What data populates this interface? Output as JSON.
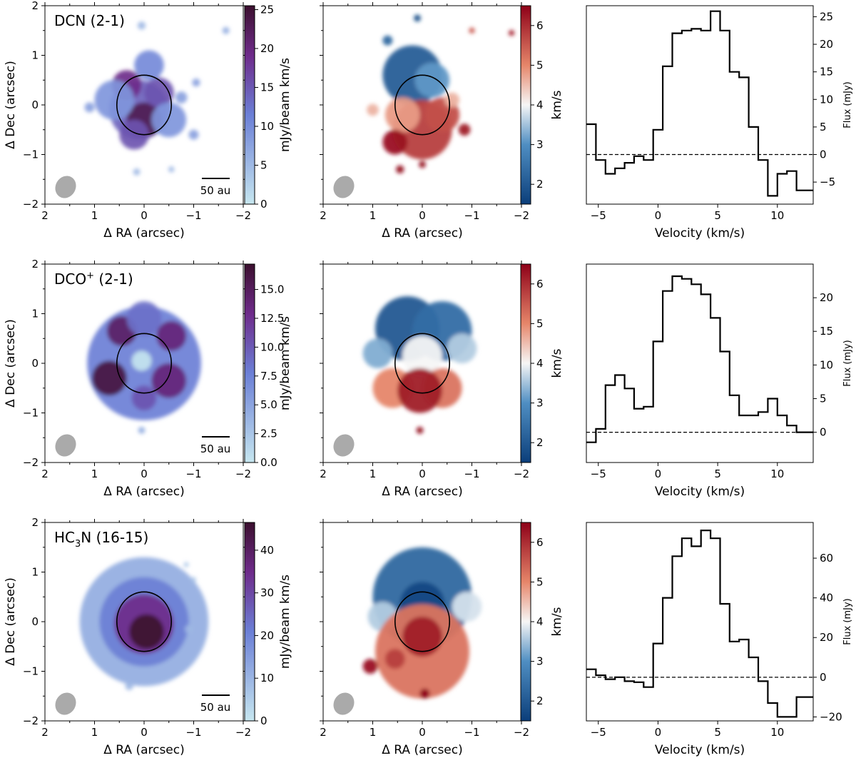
{
  "figure": {
    "colors": {
      "intensity_low": "#c6e6ef",
      "intensity_mid": "#6b7fd6",
      "intensity_high": "#3b0f2e",
      "velocity_blue": "#0b3e7a",
      "velocity_white": "#f6f6f6",
      "velocity_red": "#8e0018",
      "beam": "#aaaaaa"
    }
  },
  "chart_data": [
    {
      "type": "heatmap",
      "kind": "intensity",
      "row": 0,
      "title": "DCN (2-1)",
      "xlabel": "Δ RA (arcsec)",
      "ylabel": "Δ Dec (arcsec)",
      "xlim": [
        2,
        -2
      ],
      "ylim": [
        -2,
        2
      ],
      "xticks": [
        2,
        1,
        0,
        -1,
        -2
      ],
      "yticks": [
        -2,
        -1,
        0,
        1,
        2
      ],
      "xtick_labels": [
        "2",
        "1",
        "0",
        "−1",
        "−2"
      ],
      "ytick_labels": [
        "−2",
        "−1",
        "0",
        "1",
        "2"
      ],
      "colorbar": {
        "label": "mJy/beam km/s",
        "range": [
          0,
          25.5
        ],
        "ticks": [
          0,
          5,
          10,
          15,
          20,
          25
        ],
        "tick_labels": [
          "0",
          "5",
          "10",
          "15",
          "20",
          "25"
        ]
      },
      "scalebar": "50 au",
      "ellipse": {
        "center": [
          0,
          0
        ],
        "semi_x": 0.55,
        "semi_y": 0.6
      },
      "blobs": [
        {
          "x": 0.1,
          "y": -0.1,
          "r": 0.6,
          "v": 0.55
        },
        {
          "x": 0.0,
          "y": -0.3,
          "r": 0.35,
          "v": 0.9
        },
        {
          "x": 0.35,
          "y": 0.4,
          "r": 0.3,
          "v": 0.75
        },
        {
          "x": -0.3,
          "y": 0.25,
          "r": 0.3,
          "v": 0.6
        },
        {
          "x": -0.1,
          "y": 0.8,
          "r": 0.3,
          "v": 0.4
        },
        {
          "x": 0.6,
          "y": 0.1,
          "r": 0.4,
          "v": 0.35
        },
        {
          "x": -0.5,
          "y": -0.3,
          "r": 0.35,
          "v": 0.35
        },
        {
          "x": 0.2,
          "y": -0.6,
          "r": 0.3,
          "v": 0.6
        },
        {
          "x": 1.1,
          "y": -0.05,
          "r": 0.1,
          "v": 0.3
        },
        {
          "x": -0.75,
          "y": 0.15,
          "r": 0.12,
          "v": 0.3
        },
        {
          "x": -1.0,
          "y": -0.6,
          "r": 0.1,
          "v": 0.3
        },
        {
          "x": -1.65,
          "y": 1.5,
          "r": 0.07,
          "v": 0.25
        },
        {
          "x": 0.05,
          "y": 1.6,
          "r": 0.08,
          "v": 0.2
        },
        {
          "x": -1.05,
          "y": 0.45,
          "r": 0.08,
          "v": 0.3
        },
        {
          "x": 0.15,
          "y": -1.35,
          "r": 0.07,
          "v": 0.2
        },
        {
          "x": -0.55,
          "y": -1.3,
          "r": 0.06,
          "v": 0.2
        }
      ]
    },
    {
      "type": "heatmap",
      "kind": "velocity",
      "row": 0,
      "xlabel": "Δ RA (arcsec)",
      "xlim": [
        2,
        -2
      ],
      "ylim": [
        -2,
        2
      ],
      "xticks": [
        2,
        1,
        0,
        -1,
        -2
      ],
      "yticks": [
        -2,
        -1,
        0,
        1,
        2
      ],
      "xtick_labels": [
        "2",
        "1",
        "0",
        "−1",
        "−2"
      ],
      "colorbar": {
        "label": "km/s",
        "range": [
          1.5,
          6.5
        ],
        "ticks": [
          2,
          3,
          4,
          5,
          6
        ],
        "tick_labels": [
          "2",
          "3",
          "4",
          "5",
          "6"
        ]
      },
      "ellipse": {
        "center": [
          0,
          0
        ],
        "semi_x": 0.55,
        "semi_y": 0.6
      },
      "blobs": [
        {
          "x": 0.2,
          "y": 0.6,
          "r": 0.6,
          "v": 2.1
        },
        {
          "x": -0.2,
          "y": 0.5,
          "r": 0.35,
          "v": 3.1
        },
        {
          "x": 0.0,
          "y": -0.5,
          "r": 0.6,
          "v": 5.8
        },
        {
          "x": 0.4,
          "y": -0.2,
          "r": 0.35,
          "v": 4.8
        },
        {
          "x": -0.4,
          "y": -0.2,
          "r": 0.35,
          "v": 5.6
        },
        {
          "x": 0.55,
          "y": -0.75,
          "r": 0.25,
          "v": 6.3
        },
        {
          "x": 1.0,
          "y": -0.1,
          "r": 0.12,
          "v": 4.6
        },
        {
          "x": -0.6,
          "y": 0.1,
          "r": 0.15,
          "v": 4.6
        },
        {
          "x": -0.85,
          "y": -0.5,
          "r": 0.12,
          "v": 6.2
        },
        {
          "x": 0.45,
          "y": -1.3,
          "r": 0.08,
          "v": 6.4
        },
        {
          "x": 0.1,
          "y": 1.75,
          "r": 0.07,
          "v": 1.8
        },
        {
          "x": -1.0,
          "y": 1.5,
          "r": 0.06,
          "v": 5.5
        },
        {
          "x": -1.8,
          "y": 1.45,
          "r": 0.06,
          "v": 6.1
        },
        {
          "x": 0.0,
          "y": -1.2,
          "r": 0.07,
          "v": 6.4
        },
        {
          "x": 0.7,
          "y": 1.3,
          "r": 0.1,
          "v": 2.3
        }
      ]
    },
    {
      "type": "line",
      "kind": "spectrum",
      "row": 0,
      "xlabel": "Velocity (km/s)",
      "ylabel": "Flux (mJy)",
      "xlim": [
        -6,
        13
      ],
      "ylim": [
        -9,
        27
      ],
      "xticks": [
        -5,
        0,
        5,
        10
      ],
      "xtick_labels": [
        "−5",
        "0",
        "5",
        "10"
      ],
      "yticks": [
        -5,
        0,
        5,
        10,
        15,
        20,
        25
      ],
      "ytick_labels": [
        "−5",
        "0",
        "5",
        "10",
        "15",
        "20",
        "25"
      ],
      "x": [
        -6.0,
        -5.2,
        -4.4,
        -3.6,
        -2.8,
        -2.0,
        -1.2,
        -0.4,
        0.4,
        1.2,
        2.0,
        2.8,
        3.6,
        4.4,
        5.2,
        6.0,
        6.8,
        7.6,
        8.4,
        9.2,
        10.0,
        10.8,
        11.6,
        12.4
      ],
      "y": [
        5.5,
        -1.0,
        -3.5,
        -2.5,
        -1.5,
        -0.3,
        -1.0,
        4.5,
        16.0,
        22.0,
        22.5,
        22.8,
        22.5,
        26.0,
        22.5,
        15.0,
        14.0,
        5.0,
        -1.0,
        -7.5,
        -3.5,
        -3.0,
        -6.5,
        -6.5
      ],
      "zero_line": 0
    },
    {
      "type": "heatmap",
      "kind": "intensity",
      "row": 1,
      "title_main": "DCO",
      "title_sup": "+",
      "title_tail": " (2-1)",
      "xlabel": "Δ RA (arcsec)",
      "ylabel": "Δ Dec (arcsec)",
      "xlim": [
        2,
        -2
      ],
      "ylim": [
        -2,
        2
      ],
      "xticks": [
        2,
        1,
        0,
        -1,
        -2
      ],
      "yticks": [
        -2,
        -1,
        0,
        1,
        2
      ],
      "xtick_labels": [
        "2",
        "1",
        "0",
        "−1",
        "−2"
      ],
      "ytick_labels": [
        "−2",
        "−1",
        "0",
        "1",
        "2"
      ],
      "colorbar": {
        "label": "mJy/beam km/s",
        "range": [
          0,
          17.2
        ],
        "ticks": [
          0,
          2.5,
          5,
          7.5,
          10,
          12.5,
          15
        ],
        "tick_labels": [
          "0.0",
          "2.5",
          "5.0",
          "7.5",
          "10.0",
          "12.5",
          "15.0"
        ]
      },
      "scalebar": "50 au",
      "ellipse": {
        "center": [
          0,
          0
        ],
        "semi_x": 0.55,
        "semi_y": 0.6
      },
      "blobs": [
        {
          "x": 0.0,
          "y": 0.0,
          "r": 1.15,
          "v": 0.45
        },
        {
          "x": 0.45,
          "y": 0.65,
          "r": 0.3,
          "v": 0.85
        },
        {
          "x": -0.55,
          "y": 0.55,
          "r": 0.3,
          "v": 0.8
        },
        {
          "x": 0.7,
          "y": -0.3,
          "r": 0.35,
          "v": 0.95
        },
        {
          "x": -0.5,
          "y": -0.35,
          "r": 0.35,
          "v": 0.8
        },
        {
          "x": 0.0,
          "y": -0.7,
          "r": 0.25,
          "v": 0.6
        },
        {
          "x": 0.0,
          "y": 0.9,
          "r": 0.35,
          "v": 0.5
        },
        {
          "x": 0.05,
          "y": 0.05,
          "r": 0.2,
          "v": 0.0
        },
        {
          "x": 0.05,
          "y": -1.35,
          "r": 0.07,
          "v": 0.25
        }
      ]
    },
    {
      "type": "heatmap",
      "kind": "velocity",
      "row": 1,
      "xlabel": "Δ RA (arcsec)",
      "xlim": [
        2,
        -2
      ],
      "ylim": [
        -2,
        2
      ],
      "xticks": [
        2,
        1,
        0,
        -1,
        -2
      ],
      "yticks": [
        -2,
        -1,
        0,
        1,
        2
      ],
      "xtick_labels": [
        "2",
        "1",
        "0",
        "−1",
        "−2"
      ],
      "colorbar": {
        "label": "km/s",
        "range": [
          1.5,
          6.5
        ],
        "ticks": [
          2,
          3,
          4,
          5,
          6
        ],
        "tick_labels": [
          "2",
          "3",
          "4",
          "5",
          "6"
        ]
      },
      "ellipse": {
        "center": [
          0,
          0
        ],
        "semi_x": 0.55,
        "semi_y": 0.6
      },
      "blobs": [
        {
          "x": 0.3,
          "y": 0.7,
          "r": 0.65,
          "v": 2.0
        },
        {
          "x": -0.4,
          "y": 0.65,
          "r": 0.6,
          "v": 2.4
        },
        {
          "x": -0.8,
          "y": 0.3,
          "r": 0.3,
          "v": 3.6
        },
        {
          "x": 0.9,
          "y": 0.2,
          "r": 0.3,
          "v": 3.3
        },
        {
          "x": 0.0,
          "y": 0.15,
          "r": 0.4,
          "v": 4.0
        },
        {
          "x": 0.6,
          "y": -0.5,
          "r": 0.4,
          "v": 5.0
        },
        {
          "x": -0.4,
          "y": -0.5,
          "r": 0.4,
          "v": 5.2
        },
        {
          "x": 0.05,
          "y": -0.55,
          "r": 0.45,
          "v": 6.2
        },
        {
          "x": 0.05,
          "y": -1.35,
          "r": 0.07,
          "v": 6.4
        }
      ]
    },
    {
      "type": "line",
      "kind": "spectrum",
      "row": 1,
      "xlabel": "Velocity (km/s)",
      "ylabel": "Flux (mJy)",
      "xlim": [
        -6,
        13
      ],
      "ylim": [
        -4.5,
        25
      ],
      "xticks": [
        -5,
        0,
        5,
        10
      ],
      "xtick_labels": [
        "−5",
        "0",
        "5",
        "10"
      ],
      "yticks": [
        0,
        5,
        10,
        15,
        20
      ],
      "ytick_labels": [
        "0",
        "5",
        "10",
        "15",
        "20"
      ],
      "x": [
        -6.0,
        -5.2,
        -4.4,
        -3.6,
        -2.8,
        -2.0,
        -1.2,
        -0.4,
        0.4,
        1.2,
        2.0,
        2.8,
        3.6,
        4.4,
        5.2,
        6.0,
        6.8,
        7.6,
        8.4,
        9.2,
        10.0,
        10.8,
        11.6,
        12.4
      ],
      "y": [
        -1.5,
        0.5,
        7.0,
        8.5,
        6.5,
        3.5,
        3.8,
        13.5,
        21.0,
        23.2,
        22.8,
        22.0,
        20.5,
        17.0,
        12.0,
        5.5,
        2.5,
        2.5,
        3.0,
        5.0,
        2.5,
        1.0,
        0.0,
        0.0
      ],
      "zero_line": 0
    },
    {
      "type": "heatmap",
      "kind": "intensity",
      "row": 2,
      "title_main": "HC",
      "title_sub": "3",
      "title_tail": "N (16-15)",
      "xlabel": "Δ RA (arcsec)",
      "ylabel": "Δ Dec (arcsec)",
      "xlim": [
        2,
        -2
      ],
      "ylim": [
        -2,
        2
      ],
      "xticks": [
        2,
        1,
        0,
        -1,
        -2
      ],
      "yticks": [
        -2,
        -1,
        0,
        1,
        2
      ],
      "xtick_labels": [
        "2",
        "1",
        "0",
        "−1",
        "−2"
      ],
      "ytick_labels": [
        "−2",
        "−1",
        "0",
        "1",
        "2"
      ],
      "colorbar": {
        "label": "mJy/beam km/s",
        "range": [
          0,
          46.5
        ],
        "ticks": [
          0,
          10,
          20,
          30,
          40
        ],
        "tick_labels": [
          "0",
          "10",
          "20",
          "30",
          "40"
        ]
      },
      "scalebar": "50 au",
      "ellipse": {
        "center": [
          0,
          0
        ],
        "semi_x": 0.55,
        "semi_y": 0.6
      },
      "blobs": [
        {
          "x": 0.0,
          "y": 0.0,
          "r": 1.3,
          "v": 0.25
        },
        {
          "x": 0.0,
          "y": 0.0,
          "r": 0.9,
          "v": 0.45
        },
        {
          "x": 0.0,
          "y": -0.05,
          "r": 0.6,
          "v": 0.75
        },
        {
          "x": -0.05,
          "y": -0.2,
          "r": 0.35,
          "v": 1.0
        },
        {
          "x": 0.3,
          "y": -1.3,
          "r": 0.08,
          "v": 0.2
        },
        {
          "x": -0.9,
          "y": -0.15,
          "r": 0.08,
          "v": 0.2
        },
        {
          "x": -1.0,
          "y": 0.85,
          "r": 0.05,
          "v": 0.15
        },
        {
          "x": -0.85,
          "y": 1.15,
          "r": 0.05,
          "v": 0.15
        }
      ]
    },
    {
      "type": "heatmap",
      "kind": "velocity",
      "row": 2,
      "xlabel": "Δ RA (arcsec)",
      "xlim": [
        2,
        -2
      ],
      "ylim": [
        -2,
        2
      ],
      "xticks": [
        2,
        1,
        0,
        -1,
        -2
      ],
      "yticks": [
        -2,
        -1,
        0,
        1,
        2
      ],
      "xtick_labels": [
        "2",
        "1",
        "0",
        "−1",
        "−2"
      ],
      "colorbar": {
        "label": "km/s",
        "range": [
          1.5,
          6.5
        ],
        "ticks": [
          2,
          3,
          4,
          5,
          6
        ],
        "tick_labels": [
          "2",
          "3",
          "4",
          "5",
          "6"
        ]
      },
      "ellipse": {
        "center": [
          0,
          0
        ],
        "semi_x": 0.55,
        "semi_y": 0.6
      },
      "blobs": [
        {
          "x": 0.0,
          "y": 0.5,
          "r": 1.0,
          "v": 2.3
        },
        {
          "x": 0.0,
          "y": 0.35,
          "r": 0.45,
          "v": 1.7
        },
        {
          "x": -0.9,
          "y": 0.3,
          "r": 0.3,
          "v": 3.8
        },
        {
          "x": 0.8,
          "y": 0.1,
          "r": 0.3,
          "v": 3.6
        },
        {
          "x": 0.0,
          "y": -0.6,
          "r": 0.95,
          "v": 5.2
        },
        {
          "x": 0.0,
          "y": -0.3,
          "r": 0.4,
          "v": 6.2
        },
        {
          "x": 0.55,
          "y": -0.75,
          "r": 0.2,
          "v": 5.8
        },
        {
          "x": 1.05,
          "y": -0.9,
          "r": 0.15,
          "v": 6.3
        },
        {
          "x": -0.05,
          "y": -1.45,
          "r": 0.1,
          "v": 6.5
        }
      ]
    },
    {
      "type": "line",
      "kind": "spectrum",
      "row": 2,
      "xlabel": "Velocity (km/s)",
      "ylabel": "Flux (mJy)",
      "xlim": [
        -6,
        13
      ],
      "ylim": [
        -22,
        78
      ],
      "xticks": [
        -5,
        0,
        5,
        10
      ],
      "xtick_labels": [
        "−5",
        "0",
        "5",
        "10"
      ],
      "yticks": [
        -20,
        0,
        20,
        40,
        60
      ],
      "ytick_labels": [
        "−20",
        "0",
        "20",
        "40",
        "60"
      ],
      "x": [
        -6.0,
        -5.2,
        -4.4,
        -3.6,
        -2.8,
        -2.0,
        -1.2,
        -0.4,
        0.4,
        1.2,
        2.0,
        2.8,
        3.6,
        4.4,
        5.2,
        6.0,
        6.8,
        7.6,
        8.4,
        9.2,
        10.0,
        10.8,
        11.6,
        12.4
      ],
      "y": [
        4.0,
        1.0,
        -1.0,
        0.0,
        -2.0,
        -2.5,
        -5.0,
        17.0,
        40.0,
        61.0,
        70.0,
        66.0,
        74.0,
        70.0,
        37.0,
        18.0,
        19.0,
        10.0,
        -2.0,
        -13.0,
        -20.0,
        -20.0,
        -10.0,
        -10.0
      ],
      "zero_line": 0
    }
  ]
}
